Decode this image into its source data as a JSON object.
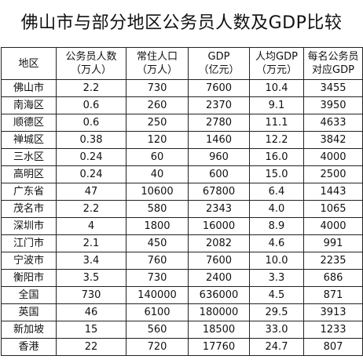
{
  "title": "佛山市与部分地区公务员人数及GDP比较",
  "headers": [
    {
      "line1": "地区",
      "line2": ""
    },
    {
      "line1": "公务员人数",
      "line2": "（万人）"
    },
    {
      "line1": "常住人口",
      "line2": "（万人）"
    },
    {
      "line1": "GDP",
      "line2": "（亿元）"
    },
    {
      "line1": "人均GDP",
      "line2": "（万元）"
    },
    {
      "line1": "每名公务员",
      "line2": "对应GDP"
    }
  ],
  "rows": [
    [
      "佛山市",
      "2.2",
      "730",
      "7600",
      "10.4",
      "3455"
    ],
    [
      "南海区",
      "0.6",
      "260",
      "2370",
      "9.1",
      "3950"
    ],
    [
      "顺德区",
      "0.6",
      "250",
      "2780",
      "11.1",
      "4633"
    ],
    [
      "禅城区",
      "0.38",
      "120",
      "1460",
      "12.2",
      "3842"
    ],
    [
      "三水区",
      "0.24",
      "60",
      "960",
      "16.0",
      "4000"
    ],
    [
      "高明区",
      "0.24",
      "40",
      "600",
      "15.0",
      "2500"
    ],
    [
      "广东省",
      "47",
      "10600",
      "67800",
      "6.4",
      "1443"
    ],
    [
      "茂名市",
      "2.2",
      "580",
      "2343",
      "4.0",
      "1065"
    ],
    [
      "深圳市",
      "4",
      "1800",
      "16000",
      "8.9",
      "4000"
    ],
    [
      "江门市",
      "2.1",
      "450",
      "2082",
      "4.6",
      "991"
    ],
    [
      "宁波市",
      "3.4",
      "760",
      "7600",
      "10.0",
      "2235"
    ],
    [
      "衡阳市",
      "3.5",
      "730",
      "2400",
      "3.3",
      "686"
    ],
    [
      "全国",
      "730",
      "140000",
      "636000",
      "4.5",
      "871"
    ],
    [
      "英国",
      "46",
      "6100",
      "180000",
      "29.5",
      "3913"
    ],
    [
      "新加坡",
      "15",
      "560",
      "18500",
      "33.0",
      "1233"
    ],
    [
      "香港",
      "22",
      "720",
      "17760",
      "24.7",
      "807"
    ]
  ]
}
